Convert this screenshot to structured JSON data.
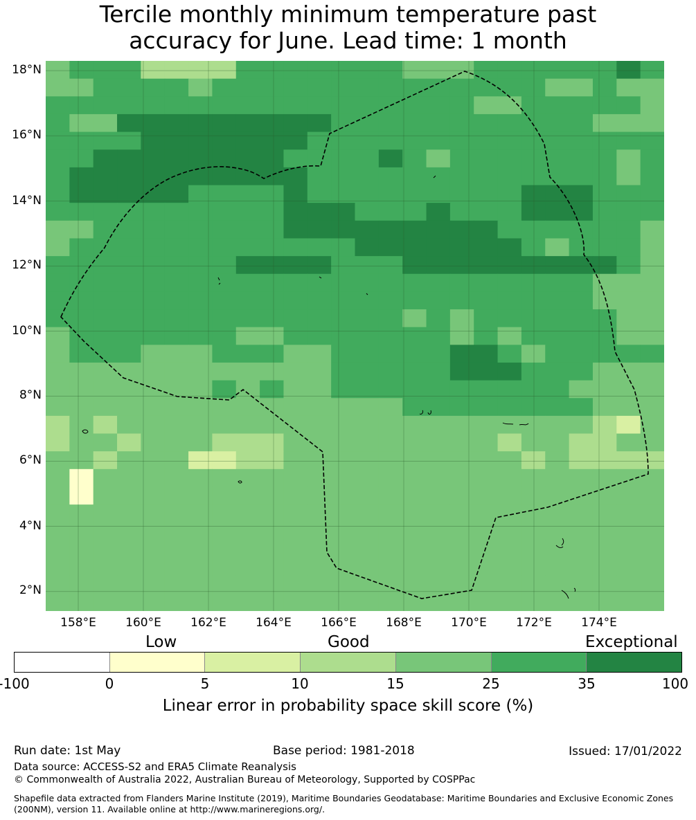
{
  "title_line1": "Tercile monthly minimum temperature past",
  "title_line2": "accuracy for June. Lead time: 1 month",
  "map": {
    "lon_range": [
      157.0,
      176.0
    ],
    "lat_range": [
      1.4,
      18.3
    ],
    "lat_ticks": [
      "18°N",
      "16°N",
      "14°N",
      "12°N",
      "10°N",
      "8°N",
      "6°N",
      "4°N",
      "2°N"
    ],
    "lon_ticks": [
      "158°E",
      "160°E",
      "162°E",
      "164°E",
      "166°E",
      "168°E",
      "170°E",
      "172°E",
      "174°E"
    ],
    "gridline_color": "#2a5a2a",
    "boundary_color": "#000000",
    "color_scale": {
      "b": "#ffffff",
      "y": "#ffffcc",
      "p": "#d9f0a3",
      "l": "#addd8e",
      "m": "#78c679",
      "g": "#41ab5d",
      "d": "#238443"
    },
    "grid_rows": [
      "mgggllllgggggggmmmggggggdg",
      "mmggggmggggggggggggggmmgmm",
      "ggggggggggggggggggmmgggggm",
      "gmmdddddddddgggggggggggmmm",
      "ggggdddddddggggggggggggggg",
      "ggddddddddggggdgmgggggggmg",
      "gddddddddddgggggggggggggmg",
      "gdddddggggdgggggggggdddggg",
      "ggggggggggdddgggdgggdddggg",
      "mmggggggggdddddddddggggggm",
      "mggggggggggggdddddddgmgggm",
      "ggggggggddddgggdddddddddgm",
      "gggggggggggggggggggggggmmm",
      "gggggggggggggggggggggggmmm",
      "gggggggggggggggmgmggggggmm",
      "mgggggggmmgggggggmgmggggmm",
      "mgggmmmgggmmgggggddgmggggg",
      "mmmmmmmmmmmmgggggdddgggmmm",
      "mmmmmmmgmgmmggggggggggmmmm",
      "mmmmmmmmmmmmmmmggggggggmmm",
      "lmlmmmmmmmmmmmmmmmmmmmmlpm",
      "lmmlmmmlllmmmmmmmmmlmmllmm",
      "mmlmmmppllmmmmmmmmmmlmllll",
      "mymmmmmmmmmmmmmmmmmmmmmmmm",
      "mymmmmmmmmmmmmmmmmmmmmmmmm",
      "mmmmmmmmmmmmmmmmmmmmmmmmmm",
      "mmmmmmmmmmmmmmmmmmmmmmmmmm",
      "mmmmmmmmmmmmmmmmmmmmmmmmmm",
      "mmmmmmmmmmmmmmmmmmmmmmmmmm",
      "mmmmmmmmmmmmmmmmmmmmmmmmmm",
      "mmmmmmmmmmmmmmmmmmmmmmmmmm"
    ]
  },
  "colorbar": {
    "category_labels": [
      "Low",
      "Good",
      "Exceptional"
    ],
    "tick_labels": [
      "-100",
      "0",
      "5",
      "10",
      "15",
      "25",
      "35",
      "100"
    ],
    "segment_colors": [
      "#ffffff",
      "#ffffcc",
      "#d9f0a3",
      "#addd8e",
      "#78c679",
      "#41ab5d",
      "#238443"
    ],
    "title": "Linear error in probability space skill score (%)"
  },
  "footer": {
    "run_date": "Run date: 1st May",
    "base_period": "Base period: 1981-2018",
    "issued": "Issued: 17/01/2022",
    "data_source": "Data source: ACCESS-S2 and ERA5 Climate Reanalysis",
    "copyright": "© Commonwealth of Australia 2022, Australian Bureau of Meteorology, Supported by COSPPac",
    "shapefile_note": "Shapefile data extracted from Flanders Marine Institute (2019), Maritime Boundaries Geodatabase: Maritime Boundaries and Exclusive Economic Zones (200NM), version 11. Available online at http://www.marineregions.org/."
  }
}
